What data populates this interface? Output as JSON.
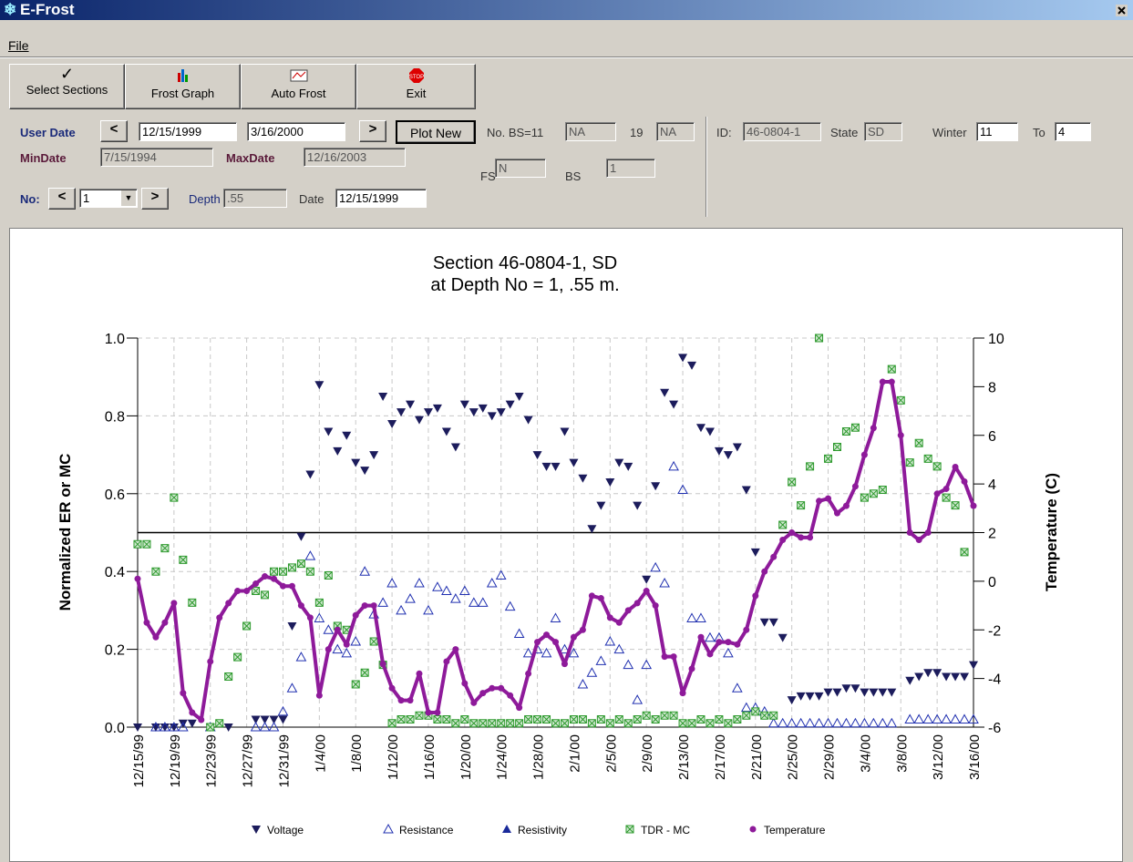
{
  "window": {
    "title": "E-Frost",
    "menu": [
      "File"
    ]
  },
  "toolbar": [
    "Select Sections",
    "Frost Graph",
    "Auto Frost",
    "Exit"
  ],
  "form": {
    "user_date_label": "User Date",
    "prev": "<",
    "start_date": "12/15/1999",
    "end_date": "3/16/2000",
    "next": ">",
    "plot_new": "Plot New",
    "bs_label": "No. BS=11",
    "bs_value": "NA",
    "n19_label": "19",
    "n19_value": "NA",
    "id_label": "ID:",
    "id_value": "46-0804-1",
    "state_label": "State",
    "state_value": "SD",
    "winter_label": "Winter",
    "winter_value": "11",
    "to_label": "To",
    "to_value": "4",
    "min_date_label": "MinDate",
    "min_date": "7/15/1994",
    "max_date_label": "MaxDate",
    "max_date": "12/16/2003",
    "fs_label": "FS",
    "fs_value": "N",
    "bs2_label": "BS",
    "bs2_value": "1",
    "no_label": "No:",
    "no_prev": "<",
    "no_value": "1",
    "no_next": ">",
    "depth_label": "Depth",
    "depth_value": ".55",
    "date_label": "Date",
    "date_value": "12/15/1999"
  },
  "chart_data": {
    "type": "scatter",
    "title": [
      "Section 46-0804-1, SD",
      "at Depth No = 1, .55 m."
    ],
    "y_label": "Normalized ER or MC",
    "y2_label": "Temperature (C)",
    "categories": [
      "12/15/99",
      null,
      null,
      null,
      "12/19/99",
      null,
      null,
      null,
      "12/23/99",
      null,
      null,
      null,
      "12/27/99",
      null,
      null,
      null,
      "12/31/99",
      null,
      null,
      null,
      "1/4/00",
      null,
      null,
      null,
      "1/8/00",
      null,
      null,
      null,
      "1/12/00",
      null,
      null,
      null,
      "1/16/00",
      null,
      null,
      null,
      "1/20/00",
      null,
      null,
      null,
      "1/24/00",
      null,
      null,
      null,
      "1/28/00",
      null,
      null,
      null,
      "2/1/00",
      null,
      null,
      null,
      "2/5/00",
      null,
      null,
      null,
      "2/9/00",
      null,
      null,
      null,
      "2/13/00",
      null,
      null,
      null,
      "2/17/00",
      null,
      null,
      null,
      "2/21/00",
      null,
      null,
      null,
      "2/25/00",
      null,
      null,
      null,
      "2/29/00",
      null,
      null,
      null,
      "3/4/00",
      null,
      null,
      null,
      "3/8/00",
      null,
      null,
      null,
      "3/12/00",
      null,
      null,
      null,
      "3/16/00"
    ],
    "ylim": [
      0,
      1
    ],
    "yticks": [
      {
        "value": 0,
        "label": "0.0"
      },
      {
        "value": 0.2,
        "label": "0.2"
      },
      {
        "value": 0.4,
        "label": "0.4"
      },
      {
        "value": 0.6,
        "label": "0.6"
      },
      {
        "value": 0.8,
        "label": "0.8"
      },
      {
        "value": 1,
        "label": "1.0"
      }
    ],
    "y2lim": [
      -6,
      10
    ],
    "y2ticks": [
      -6,
      -4,
      -2,
      0,
      2,
      4,
      6,
      8,
      10
    ],
    "grid": true,
    "reference_line": 0.5,
    "series": [
      {
        "name": "Voltage",
        "color": "#1c1c5c",
        "marker": "triangle-down",
        "values": [
          0,
          null,
          0,
          0,
          0,
          0.01,
          0.01,
          null,
          0,
          null,
          0,
          null,
          null,
          0.02,
          0.02,
          0.02,
          0.02,
          0.26,
          0.49,
          0.65,
          0.88,
          0.76,
          0.71,
          0.75,
          0.68,
          0.66,
          0.7,
          0.85,
          0.78,
          0.81,
          0.83,
          0.79,
          0.81,
          0.82,
          0.76,
          0.72,
          0.83,
          0.81,
          0.82,
          0.8,
          0.81,
          0.83,
          0.85,
          0.79,
          0.7,
          0.67,
          0.67,
          0.76,
          0.68,
          0.64,
          0.51,
          0.57,
          0.63,
          0.68,
          0.67,
          0.57,
          0.38,
          0.62,
          0.86,
          0.83,
          0.95,
          0.93,
          0.77,
          0.76,
          0.71,
          0.7,
          0.72,
          0.61,
          0.45,
          0.27,
          0.27,
          0.23,
          0.07,
          0.08,
          0.08,
          0.08,
          0.09,
          0.09,
          0.1,
          0.1,
          0.09,
          0.09,
          0.09,
          0.09,
          null,
          0.12,
          0.13,
          0.14,
          0.14,
          0.13,
          0.13,
          0.13,
          0.16
        ]
      },
      {
        "name": "Resistance",
        "color": "#2030b0",
        "marker": "triangle-up-open",
        "values": [
          null,
          null,
          0,
          0,
          0,
          0,
          null,
          null,
          0,
          null,
          null,
          null,
          null,
          0,
          0,
          0,
          0.04,
          0.1,
          0.18,
          0.44,
          0.28,
          0.25,
          0.2,
          0.19,
          0.22,
          0.4,
          0.29,
          0.32,
          0.37,
          0.3,
          0.33,
          0.37,
          0.3,
          0.36,
          0.35,
          0.33,
          0.35,
          0.32,
          0.32,
          0.37,
          0.39,
          0.31,
          0.24,
          0.19,
          0.2,
          0.19,
          0.28,
          0.2,
          0.19,
          0.11,
          0.14,
          0.17,
          0.22,
          0.2,
          0.16,
          0.07,
          0.16,
          0.41,
          0.37,
          0.67,
          0.61,
          0.28,
          0.28,
          0.23,
          0.23,
          0.19,
          0.1,
          0.05,
          0.05,
          0.04,
          0.01,
          0.01,
          0.01,
          0.01,
          0.01,
          0.01,
          0.01,
          0.01,
          0.01,
          0.01,
          0.01,
          0.01,
          0.01,
          0.01,
          null,
          0.02,
          0.02,
          0.02,
          0.02,
          0.02,
          0.02,
          0.02,
          0.02
        ]
      },
      {
        "name": "Resistivity",
        "color": "#1a2a9a",
        "marker": "triangle-up",
        "values": [
          null,
          null,
          null,
          null,
          null,
          null,
          null,
          null,
          null,
          null,
          null,
          null,
          null,
          null,
          null,
          null,
          null,
          null,
          null,
          null,
          null,
          null,
          null,
          null,
          null,
          null,
          null,
          null,
          null,
          null,
          null,
          null,
          null,
          null,
          null,
          null,
          null,
          null,
          null,
          null,
          null,
          null,
          null,
          null,
          null,
          null,
          null,
          null,
          null,
          null,
          null,
          null,
          null,
          null,
          null,
          null,
          null,
          null,
          null,
          null,
          null,
          null,
          null,
          null,
          null,
          null,
          null,
          null,
          null,
          null,
          null,
          null,
          null,
          null,
          null,
          null,
          null,
          null,
          null,
          null,
          null,
          null,
          null,
          null,
          null,
          null,
          null,
          null,
          null,
          null,
          null,
          null,
          null
        ]
      },
      {
        "name": "TDR - MC",
        "color": "#2e9a2e",
        "marker": "square-x",
        "values": [
          0.47,
          0.47,
          0.4,
          0.46,
          0.59,
          0.43,
          0.32,
          null,
          0,
          0.01,
          0.13,
          0.18,
          0.26,
          0.35,
          0.34,
          0.4,
          0.4,
          0.41,
          0.42,
          0.4,
          0.32,
          0.39,
          0.26,
          0.25,
          0.11,
          0.14,
          0.22,
          0.16,
          0.01,
          0.02,
          0.02,
          0.03,
          0.03,
          0.02,
          0.02,
          0.01,
          0.02,
          0.01,
          0.01,
          0.01,
          0.01,
          0.01,
          0.01,
          0.02,
          0.02,
          0.02,
          0.01,
          0.01,
          0.02,
          0.02,
          0.01,
          0.02,
          0.01,
          0.02,
          0.01,
          0.02,
          0.03,
          0.02,
          0.03,
          0.03,
          0.01,
          0.01,
          0.02,
          0.01,
          0.02,
          0.01,
          0.02,
          0.03,
          0.04,
          0.03,
          0.03,
          0.52,
          0.63,
          0.57,
          0.67,
          1.0,
          0.69,
          0.72,
          0.76,
          0.77,
          0.59,
          0.6,
          0.61,
          0.92,
          0.84,
          0.68,
          0.73,
          0.69,
          0.67,
          0.59,
          0.57,
          0.45,
          null
        ]
      },
      {
        "name": "Temperature",
        "color": "#8e1a9a",
        "marker": "line-dot",
        "axis": "y2",
        "values": [
          0.1,
          -1.7,
          -2.3,
          -1.7,
          -0.9,
          -4.6,
          -5.4,
          -5.7,
          -3.3,
          -1.5,
          -0.9,
          -0.4,
          -0.4,
          -0.1,
          0.2,
          0.1,
          -0.2,
          -0.2,
          -1.0,
          -1.5,
          -4.7,
          -2.8,
          -2.0,
          -2.6,
          -1.4,
          -1.0,
          -1.0,
          -3.4,
          -4.4,
          -4.9,
          -4.9,
          -3.8,
          -5.4,
          -5.4,
          -3.3,
          -2.8,
          -4.2,
          -5.0,
          -4.6,
          -4.4,
          -4.4,
          -4.7,
          -5.2,
          -3.8,
          -2.5,
          -2.2,
          -2.5,
          -3.4,
          -2.3,
          -2.0,
          -0.6,
          -0.7,
          -1.5,
          -1.7,
          -1.2,
          -0.9,
          -0.4,
          -1.0,
          -3.1,
          -3.1,
          -4.6,
          -3.6,
          -2.3,
          -3.0,
          -2.5,
          -2.5,
          -2.6,
          -2.0,
          -0.6,
          0.4,
          1.0,
          1.7,
          2.0,
          1.8,
          1.8,
          3.3,
          3.4,
          2.8,
          3.1,
          3.9,
          5.2,
          6.3,
          8.2,
          8.2,
          6.0,
          2.0,
          1.7,
          2.0,
          3.6,
          3.8,
          4.7,
          4.1,
          3.1
        ]
      }
    ]
  }
}
